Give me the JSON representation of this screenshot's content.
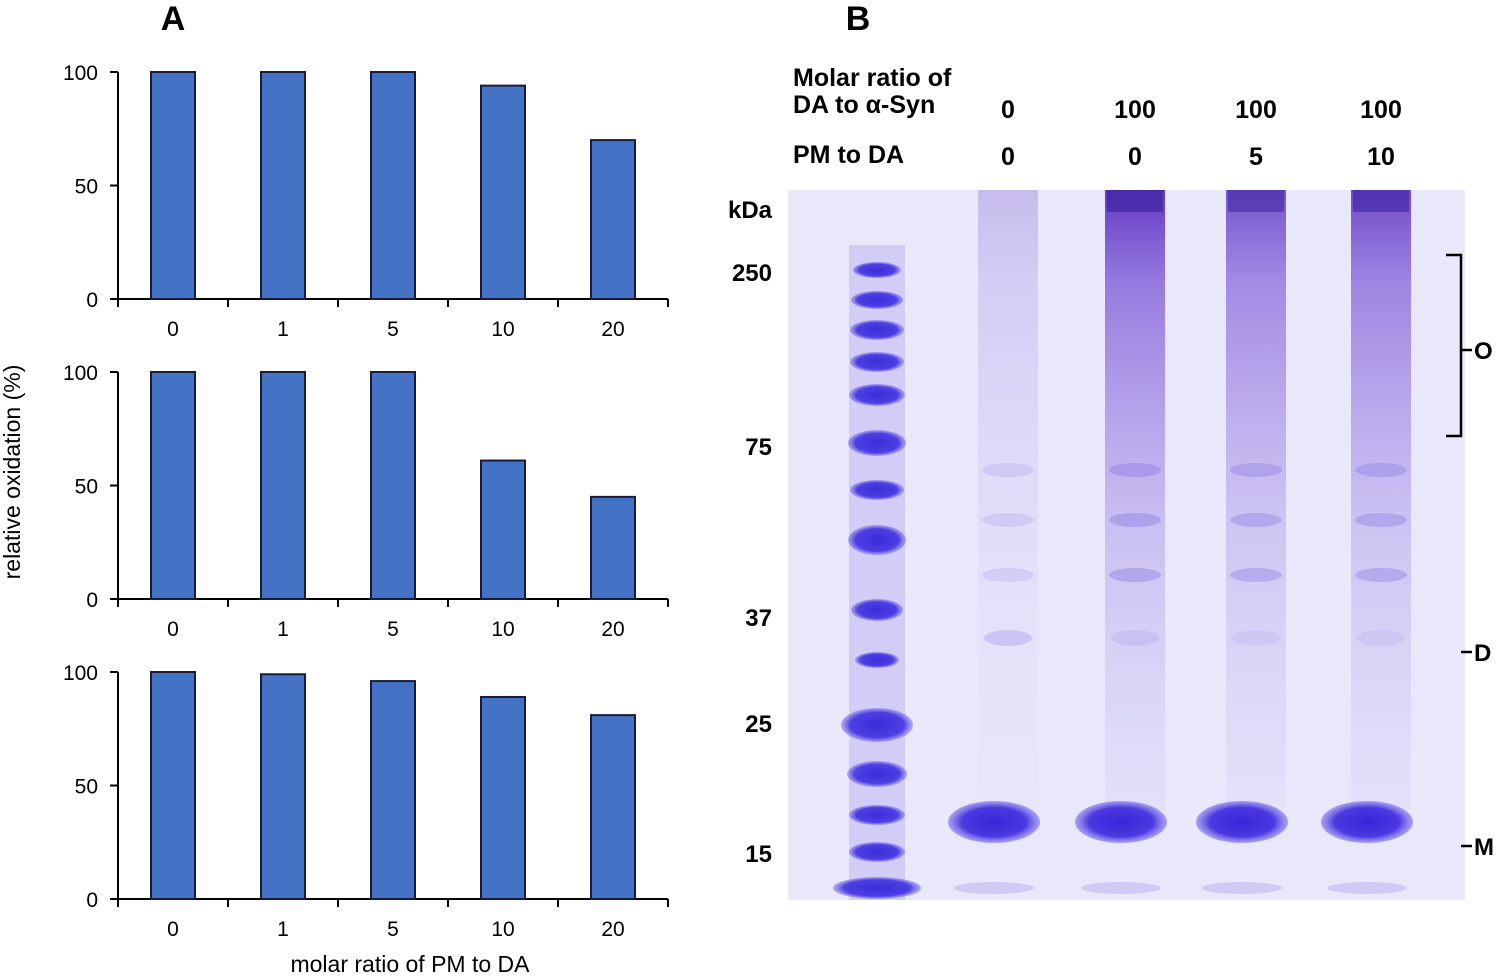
{
  "panel_labels": [
    "A",
    "B"
  ],
  "colors": {
    "bar_fill": "#4472C4",
    "bar_stroke": "#1a1a3a",
    "gel_bg": "#e9e8fb",
    "band": "#4f3fd8"
  },
  "chart_data": [
    {
      "type": "bar",
      "categories": [
        "0",
        "1",
        "5",
        "10",
        "20"
      ],
      "values": [
        100,
        100,
        100,
        94,
        70
      ],
      "ylim": [
        0,
        100
      ],
      "yticks": [
        "0",
        "50",
        "100"
      ],
      "grid": false
    },
    {
      "type": "bar",
      "categories": [
        "0",
        "1",
        "5",
        "10",
        "20"
      ],
      "values": [
        100,
        100,
        100,
        61,
        45
      ],
      "ylim": [
        0,
        100
      ],
      "yticks": [
        "0",
        "50",
        "100"
      ],
      "grid": false
    },
    {
      "type": "bar",
      "categories": [
        "0",
        "1",
        "5",
        "10",
        "20"
      ],
      "values": [
        100,
        99,
        96,
        89,
        81
      ],
      "ylim": [
        0,
        100
      ],
      "yticks": [
        "0",
        "50",
        "100"
      ],
      "grid": false
    }
  ],
  "ylabel": "relative oxidation (%)",
  "xlabel": "molar ratio of PM to DA",
  "gel": {
    "header1_line1": "Molar ratio of",
    "header1_line2": "DA to α-Syn",
    "header2": "PM to DA",
    "lanes": [
      {
        "da": "0",
        "pm": "0",
        "smear": 0.25,
        "dband": 0.35
      },
      {
        "da": "100",
        "pm": "0",
        "smear": 1.0,
        "dband": 0.2
      },
      {
        "da": "100",
        "pm": "5",
        "smear": 0.85,
        "dband": 0.15
      },
      {
        "da": "100",
        "pm": "10",
        "smear": 0.9,
        "dband": 0.15
      }
    ],
    "kda_label": "kDa",
    "markers": [
      "250",
      "75",
      "37",
      "25",
      "15"
    ],
    "bands": [
      "O",
      "D",
      "M"
    ]
  }
}
